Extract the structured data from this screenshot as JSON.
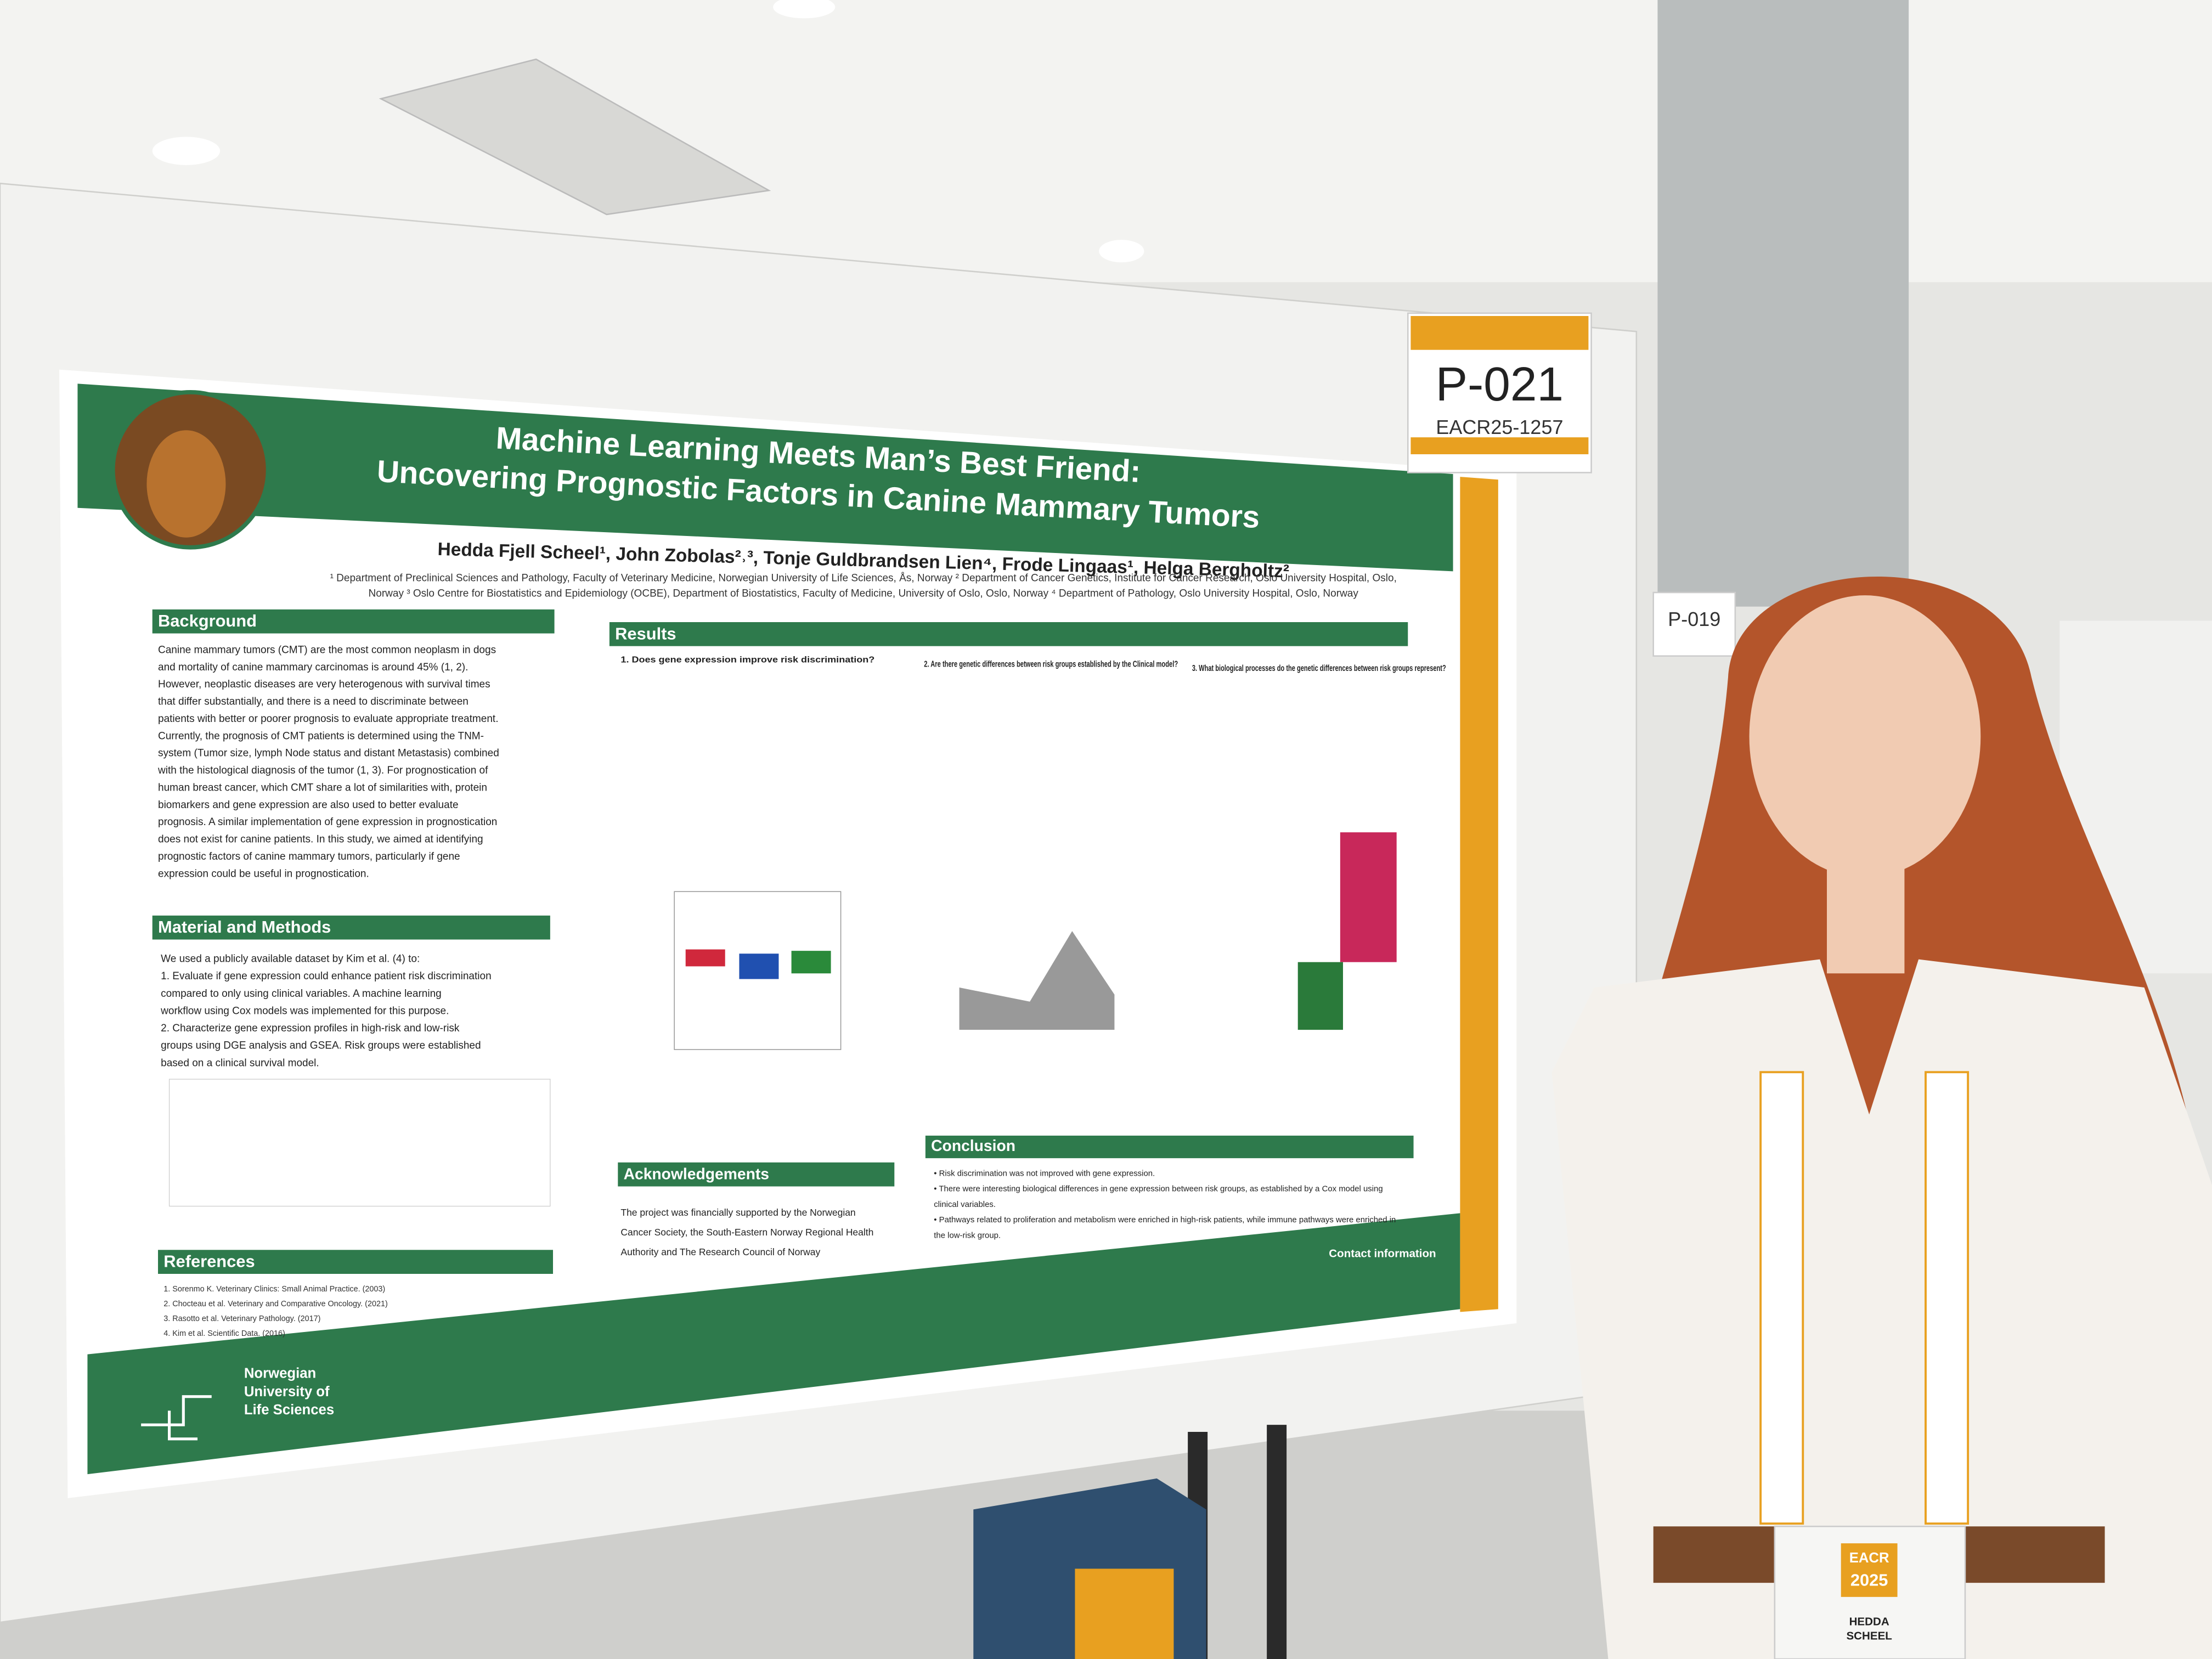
{
  "sign": {
    "code": "P-021",
    "id": "EACR25-1257"
  },
  "neighbor_sign": "P-019",
  "poster": {
    "title": [
      "Machine Learning Meets Man’s Best Friend:",
      "Uncovering Prognostic Factors in Canine Mammary Tumors"
    ],
    "authors": "Hedda Fjell Scheel¹, John Zobolas²˒³, Tonje Guldbrandsen Lien⁴, Frode Lingaas¹, Helga Bergholtz²",
    "affiliations": [
      "¹ Department of Preclinical Sciences and Pathology, Faculty of Veterinary Medicine, Norwegian University of Life Sciences, Ås, Norway ² Department of Cancer Genetics, Institute for Cancer Research, Oslo University Hospital, Oslo,",
      "Norway ³ Oslo Centre for Biostatistics and Epidemiology (OCBE), Department of Biostatistics, Faculty of Medicine, University of Oslo, Oslo, Norway ⁴ Department of Pathology, Oslo University Hospital, Oslo, Norway"
    ],
    "background": {
      "heading": "Background",
      "lines": [
        "Canine mammary tumors (CMT) are the most common neoplasm in dogs",
        "and mortality of canine mammary carcinomas is around 45% (1, 2).",
        "However, neoplastic diseases are very heterogenous with survival times",
        "that differ substantially, and there is a need to discriminate between",
        "patients with better or poorer prognosis to evaluate appropriate treatment.",
        "Currently, the prognosis of CMT patients is determined using the TNM-",
        "system (Tumor size, lymph Node status and distant Metastasis) combined",
        "with the histological diagnosis of the tumor (1, 3). For prognostication of",
        "human breast cancer, which CMT share a lot of similarities with, protein",
        "biomarkers and gene expression are also used to better evaluate",
        "prognosis. A similar implementation of gene expression in prognostication",
        "does not exist for canine patients. In this study, we aimed at identifying",
        "prognostic factors of canine mammary tumors, particularly if gene",
        "expression could be useful in prognostication."
      ]
    },
    "methods": {
      "heading": "Material and Methods",
      "lines": [
        "We used a publicly available dataset by Kim et al. (4) to:",
        "1.  Evaluate if gene expression could enhance patient risk discrimination",
        "     compared to only using clinical variables. A machine learning",
        "     workflow using Cox models was implemented for this purpose.",
        "2.  Characterize gene expression profiles in high-risk and low-risk",
        "     groups using DGE analysis and GSEA. Risk groups were established",
        "     based on a clinical survival model."
      ]
    },
    "references": {
      "heading": "References",
      "items": [
        "1.  Sorenmo K. Veterinary Clinics: Small Animal Practice. (2003)",
        "2.  Chocteau et al. Veterinary and Comparative Oncology. (2021)",
        "3.  Rasotto et al. Veterinary Pathology. (2017)",
        "4.  Kim et al. Scientific Data. (2016)"
      ]
    },
    "results": {
      "heading": "Results",
      "questions": [
        "1. Does gene expression improve risk discrimination?",
        "2. Are there genetic differences between risk groups established by the Clinical model?",
        "3. What biological processes do the genetic differences between risk groups represent?"
      ]
    },
    "acknowledgements": {
      "heading": "Acknowledgements",
      "lines": [
        "The project was financially supported by the Norwegian",
        "Cancer Society, the South-Eastern Norway Regional Health",
        "Authority and The Research Council of Norway"
      ]
    },
    "conclusion": {
      "heading": "Conclusion",
      "lines": [
        "•  Risk discrimination was not improved with gene expression.",
        "•  There were interesting biological differences in gene expression between risk groups, as established by a Cox model using",
        "    clinical variables.",
        "•  Pathways related to proliferation and metabolism were enriched in high-risk patients, while immune pathways were enriched in",
        "    the low-risk group."
      ]
    },
    "contact": "Contact information",
    "logo": [
      "Norwegian",
      "University of",
      "Life Sciences"
    ]
  },
  "badge": {
    "event": [
      "EACR",
      "2025"
    ],
    "name": [
      "HEDDA",
      "SCHEEL"
    ]
  }
}
